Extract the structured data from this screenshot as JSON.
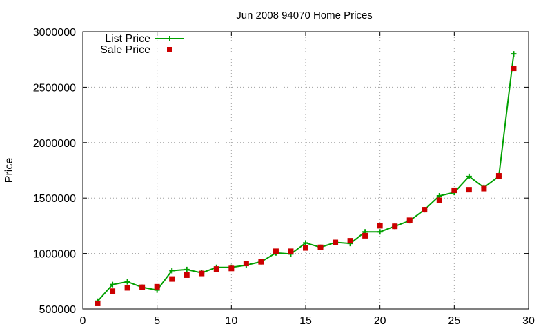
{
  "chart_data": {
    "type": "line",
    "title": "Jun 2008 94070 Home Prices",
    "xlabel": "",
    "ylabel": "Price",
    "xlim": [
      0,
      30
    ],
    "ylim": [
      500000,
      3000000
    ],
    "xticks": [
      0,
      5,
      10,
      15,
      20,
      25,
      30
    ],
    "yticks": [
      500000,
      1000000,
      1500000,
      2000000,
      2500000,
      3000000
    ],
    "grid": true,
    "legend_position": "top-left",
    "x": [
      1,
      2,
      3,
      4,
      5,
      6,
      7,
      8,
      9,
      10,
      11,
      12,
      13,
      14,
      15,
      16,
      17,
      18,
      19,
      20,
      21,
      22,
      23,
      24,
      25,
      26,
      27,
      28,
      29
    ],
    "series": [
      {
        "name": "List Price",
        "style": "line-plus",
        "color": "#00a000",
        "values": [
          570000,
          720000,
          745000,
          695000,
          670000,
          845000,
          855000,
          825000,
          875000,
          875000,
          895000,
          925000,
          1005000,
          995000,
          1095000,
          1055000,
          1100000,
          1090000,
          1195000,
          1195000,
          1245000,
          1295000,
          1395000,
          1520000,
          1550000,
          1695000,
          1595000,
          1695000,
          2800000
        ]
      },
      {
        "name": "Sale Price",
        "style": "square",
        "color": "#cc0000",
        "values": [
          550000,
          660000,
          690000,
          695000,
          700000,
          770000,
          805000,
          820000,
          860000,
          865000,
          910000,
          925000,
          1020000,
          1020000,
          1050000,
          1055000,
          1100000,
          1115000,
          1160000,
          1250000,
          1245000,
          1300000,
          1395000,
          1480000,
          1570000,
          1575000,
          1585000,
          1700000,
          2670000
        ]
      }
    ]
  }
}
